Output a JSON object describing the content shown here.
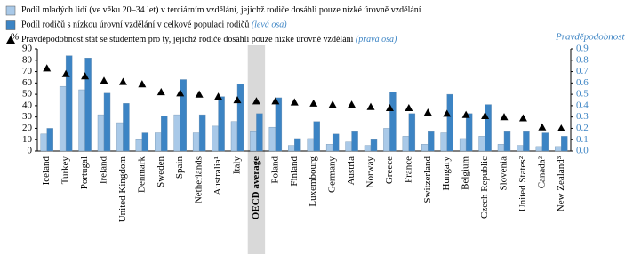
{
  "chart_data": {
    "type": "bar",
    "y_label": "%",
    "y2_label": "Pravděpodobnost",
    "categories": [
      "Iceland",
      "Turkey",
      "Portugal",
      "Ireland",
      "United Kingdom",
      "Denmark",
      "Sweden",
      "Spain",
      "Netherlands",
      "Australia¹",
      "Italy",
      "OECD average",
      "Poland",
      "Finland",
      "Luxembourg",
      "Germany",
      "Austria",
      "Norway",
      "Greece",
      "France",
      "Switzerland",
      "Hungary",
      "Belgium",
      "Czech Republic",
      "Slovenia",
      "United States²",
      "Canada²",
      "New Zealand³"
    ],
    "highlight": "OECD average",
    "series": [
      {
        "name": "Podíl mladých lidí (ve věku 20–34 let) v terciárním vzdělání, jejichž rodiče dosáhli pouze nízké úrovně vzdělání",
        "color": "#a9c9e8",
        "type": "bar",
        "values": [
          15,
          57,
          54,
          32,
          25,
          10,
          16,
          32,
          16,
          22,
          26,
          17,
          21,
          5,
          11,
          6,
          8,
          5,
          20,
          13,
          6,
          16,
          11,
          13,
          6,
          5,
          4,
          4
        ]
      },
      {
        "name": "Podíl rodičů s nízkou úrovní vzdělání v celkové populaci rodičů",
        "note": "(levá osa)",
        "color": "#3c84c4",
        "type": "bar",
        "values": [
          20,
          84,
          82,
          51,
          42,
          16,
          31,
          63,
          32,
          48,
          59,
          33,
          47,
          11,
          26,
          15,
          17,
          10,
          52,
          33,
          17,
          50,
          33,
          41,
          17,
          17,
          16,
          13
        ]
      },
      {
        "name": "Pravděpodobnost stát se studentem pro ty, jejichž rodiče dosáhli pouze nízké úrovně vzdělání",
        "note": "(pravá osa)",
        "color": "#000000",
        "type": "marker",
        "axis": "y2",
        "values": [
          0.73,
          0.68,
          0.66,
          0.62,
          0.61,
          0.59,
          0.52,
          0.51,
          0.5,
          0.48,
          0.45,
          0.44,
          0.44,
          0.43,
          0.42,
          0.41,
          0.41,
          0.39,
          0.38,
          0.38,
          0.34,
          0.33,
          0.32,
          0.31,
          0.3,
          0.29,
          0.21,
          0.2
        ]
      }
    ],
    "ylim": [
      0,
      90
    ],
    "yticks": [
      0,
      10,
      20,
      30,
      40,
      50,
      60,
      70,
      80,
      90
    ],
    "y2lim": [
      0,
      0.9
    ],
    "y2ticks": [
      {
        "value": 0,
        "label": "0.0"
      },
      0.1,
      0.2,
      0.3,
      0.4,
      0.5,
      0.6,
      0.7,
      0.8,
      0.9
    ],
    "grid": false
  }
}
